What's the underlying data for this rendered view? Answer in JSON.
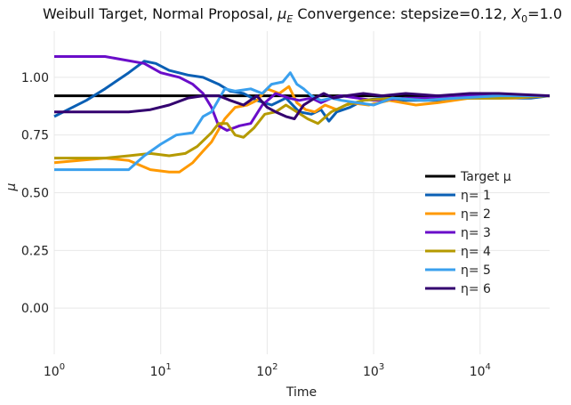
{
  "chart_data": {
    "type": "line",
    "title": "Weibull Target, Normal Proposal, μ_E Convergence: stepsize=0.12, X_0=1.0",
    "title_parts": {
      "prefix": "Weibull Target, Normal Proposal, ",
      "mu": "μ",
      "mu_sub": "E",
      "middle": " Convergence: stepsize=0.12, ",
      "x": "X",
      "x_sub": "0",
      "suffix": "=1.0"
    },
    "xlabel": "Time",
    "ylabel": "μ",
    "xscale": "log",
    "xlim": [
      1,
      45000
    ],
    "ylim": [
      -0.2,
      1.2
    ],
    "x_ticks": [
      {
        "value": 1,
        "base": "10",
        "exp": "0"
      },
      {
        "value": 10,
        "base": "10",
        "exp": "1"
      },
      {
        "value": 100,
        "base": "10",
        "exp": "2"
      },
      {
        "value": 1000,
        "base": "10",
        "exp": "3"
      },
      {
        "value": 10000,
        "base": "10",
        "exp": "4"
      }
    ],
    "y_ticks": [
      {
        "value": 0.0,
        "label": "0.00"
      },
      {
        "value": 0.25,
        "label": "0.25"
      },
      {
        "value": 0.5,
        "label": "0.50"
      },
      {
        "value": 0.75,
        "label": "0.75"
      },
      {
        "value": 1.0,
        "label": "1.00"
      }
    ],
    "grid": true,
    "legend_position": "right",
    "target": {
      "name": "Target μ",
      "value": 0.92,
      "color": "#000000"
    },
    "series": [
      {
        "name": "η= 1",
        "color": "#0a5fb4",
        "points": [
          [
            1,
            0.83
          ],
          [
            2,
            0.9
          ],
          [
            3,
            0.95
          ],
          [
            5,
            1.02
          ],
          [
            7,
            1.07
          ],
          [
            9,
            1.06
          ],
          [
            12,
            1.03
          ],
          [
            18,
            1.01
          ],
          [
            25,
            1.0
          ],
          [
            35,
            0.97
          ],
          [
            45,
            0.94
          ],
          [
            60,
            0.93
          ],
          [
            80,
            0.9
          ],
          [
            110,
            0.88
          ],
          [
            150,
            0.91
          ],
          [
            200,
            0.85
          ],
          [
            260,
            0.84
          ],
          [
            320,
            0.86
          ],
          [
            380,
            0.81
          ],
          [
            450,
            0.85
          ],
          [
            600,
            0.87
          ],
          [
            800,
            0.9
          ],
          [
            1200,
            0.91
          ],
          [
            2000,
            0.9
          ],
          [
            4000,
            0.9
          ],
          [
            8000,
            0.91
          ],
          [
            15000,
            0.91
          ],
          [
            30000,
            0.91
          ],
          [
            45000,
            0.92
          ]
        ]
      },
      {
        "name": "η= 2",
        "color": "#ff9900",
        "points": [
          [
            1,
            0.63
          ],
          [
            3,
            0.65
          ],
          [
            5,
            0.64
          ],
          [
            8,
            0.6
          ],
          [
            12,
            0.59
          ],
          [
            15,
            0.59
          ],
          [
            20,
            0.63
          ],
          [
            25,
            0.68
          ],
          [
            30,
            0.72
          ],
          [
            40,
            0.82
          ],
          [
            50,
            0.87
          ],
          [
            65,
            0.88
          ],
          [
            80,
            0.9
          ],
          [
            100,
            0.95
          ],
          [
            130,
            0.93
          ],
          [
            160,
            0.96
          ],
          [
            190,
            0.89
          ],
          [
            230,
            0.86
          ],
          [
            280,
            0.85
          ],
          [
            350,
            0.88
          ],
          [
            450,
            0.86
          ],
          [
            600,
            0.89
          ],
          [
            900,
            0.88
          ],
          [
            1400,
            0.9
          ],
          [
            2500,
            0.88
          ],
          [
            4000,
            0.89
          ],
          [
            8000,
            0.91
          ],
          [
            20000,
            0.91
          ],
          [
            45000,
            0.92
          ]
        ]
      },
      {
        "name": "η= 3",
        "color": "#6a0dc9",
        "points": [
          [
            1,
            1.09
          ],
          [
            3,
            1.09
          ],
          [
            7,
            1.06
          ],
          [
            10,
            1.02
          ],
          [
            15,
            1.0
          ],
          [
            20,
            0.97
          ],
          [
            25,
            0.93
          ],
          [
            30,
            0.87
          ],
          [
            35,
            0.79
          ],
          [
            42,
            0.77
          ],
          [
            55,
            0.79
          ],
          [
            70,
            0.8
          ],
          [
            90,
            0.88
          ],
          [
            120,
            0.93
          ],
          [
            160,
            0.91
          ],
          [
            200,
            0.9
          ],
          [
            260,
            0.91
          ],
          [
            320,
            0.89
          ],
          [
            400,
            0.91
          ],
          [
            500,
            0.92
          ],
          [
            700,
            0.91
          ],
          [
            1000,
            0.9
          ],
          [
            2000,
            0.91
          ],
          [
            4000,
            0.91
          ],
          [
            8000,
            0.92
          ],
          [
            20000,
            0.92
          ],
          [
            45000,
            0.92
          ]
        ]
      },
      {
        "name": "η= 4",
        "color": "#b59a00",
        "points": [
          [
            1,
            0.65
          ],
          [
            3,
            0.65
          ],
          [
            5,
            0.66
          ],
          [
            8,
            0.67
          ],
          [
            12,
            0.66
          ],
          [
            17,
            0.67
          ],
          [
            22,
            0.7
          ],
          [
            30,
            0.76
          ],
          [
            35,
            0.8
          ],
          [
            42,
            0.8
          ],
          [
            50,
            0.75
          ],
          [
            60,
            0.74
          ],
          [
            75,
            0.78
          ],
          [
            95,
            0.84
          ],
          [
            120,
            0.85
          ],
          [
            150,
            0.88
          ],
          [
            190,
            0.85
          ],
          [
            240,
            0.82
          ],
          [
            300,
            0.8
          ],
          [
            400,
            0.85
          ],
          [
            550,
            0.88
          ],
          [
            800,
            0.9
          ],
          [
            1500,
            0.91
          ],
          [
            3000,
            0.9
          ],
          [
            6000,
            0.91
          ],
          [
            15000,
            0.91
          ],
          [
            45000,
            0.92
          ]
        ]
      },
      {
        "name": "η= 5",
        "color": "#3aa0ee",
        "points": [
          [
            1,
            0.6
          ],
          [
            3,
            0.6
          ],
          [
            5,
            0.6
          ],
          [
            7,
            0.66
          ],
          [
            10,
            0.71
          ],
          [
            14,
            0.75
          ],
          [
            20,
            0.76
          ],
          [
            25,
            0.83
          ],
          [
            30,
            0.85
          ],
          [
            40,
            0.95
          ],
          [
            50,
            0.94
          ],
          [
            70,
            0.95
          ],
          [
            90,
            0.93
          ],
          [
            110,
            0.97
          ],
          [
            140,
            0.98
          ],
          [
            165,
            1.02
          ],
          [
            190,
            0.97
          ],
          [
            220,
            0.95
          ],
          [
            260,
            0.92
          ],
          [
            320,
            0.9
          ],
          [
            400,
            0.91
          ],
          [
            500,
            0.9
          ],
          [
            700,
            0.89
          ],
          [
            1000,
            0.88
          ],
          [
            1500,
            0.91
          ],
          [
            3000,
            0.9
          ],
          [
            6000,
            0.91
          ],
          [
            15000,
            0.92
          ],
          [
            45000,
            0.92
          ]
        ]
      },
      {
        "name": "η= 6",
        "color": "#33006f",
        "points": [
          [
            1,
            0.85
          ],
          [
            3,
            0.85
          ],
          [
            5,
            0.85
          ],
          [
            8,
            0.86
          ],
          [
            12,
            0.88
          ],
          [
            18,
            0.91
          ],
          [
            25,
            0.92
          ],
          [
            35,
            0.92
          ],
          [
            45,
            0.9
          ],
          [
            60,
            0.88
          ],
          [
            80,
            0.92
          ],
          [
            100,
            0.87
          ],
          [
            120,
            0.85
          ],
          [
            150,
            0.83
          ],
          [
            180,
            0.82
          ],
          [
            220,
            0.88
          ],
          [
            280,
            0.91
          ],
          [
            340,
            0.93
          ],
          [
            420,
            0.91
          ],
          [
            550,
            0.92
          ],
          [
            800,
            0.93
          ],
          [
            1200,
            0.92
          ],
          [
            2000,
            0.93
          ],
          [
            4000,
            0.92
          ],
          [
            8000,
            0.93
          ],
          [
            15000,
            0.93
          ],
          [
            45000,
            0.92
          ]
        ]
      }
    ]
  }
}
